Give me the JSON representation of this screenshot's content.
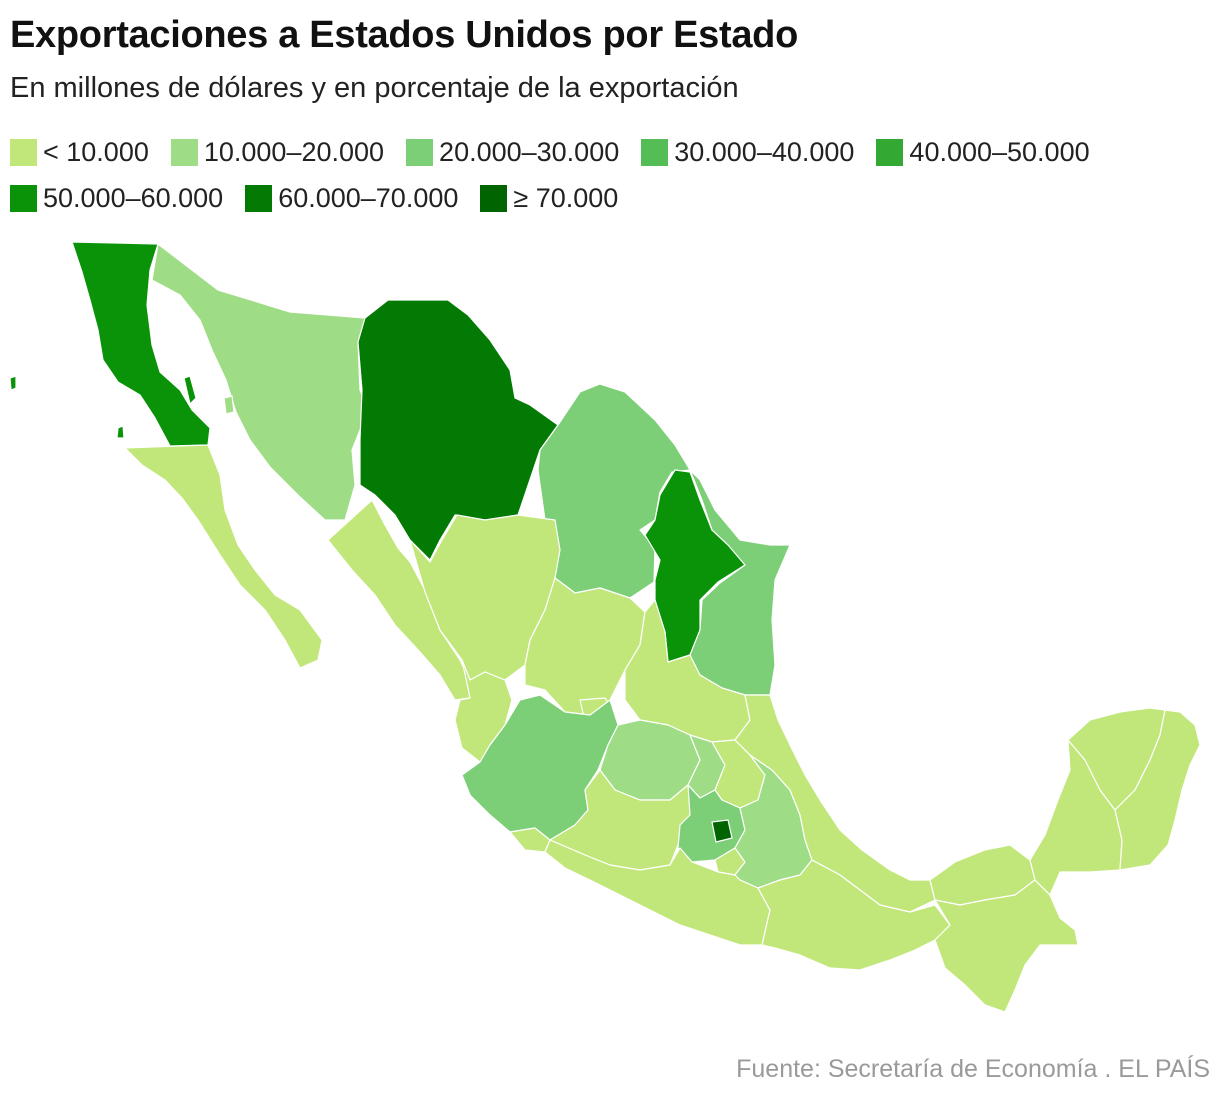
{
  "header": {
    "title": "Exportaciones a Estados Unidos por Estado",
    "subtitle": "En millones de dólares y en porcentaje de la exportación"
  },
  "legend": [
    {
      "label": "< 10.000",
      "color": "#c1e77b"
    },
    {
      "label": "10.000–20.000",
      "color": "#9fdc86"
    },
    {
      "label": "20.000–30.000",
      "color": "#7ccf77"
    },
    {
      "label": "30.000–40.000",
      "color": "#55bd55"
    },
    {
      "label": "40.000–50.000",
      "color": "#33a832"
    },
    {
      "label": "50.000–60.000",
      "color": "#0a9309"
    },
    {
      "label": "60.000–70.000",
      "color": "#037a04"
    },
    {
      "label": "≥ 70.000",
      "color": "#006400"
    }
  ],
  "footer": {
    "source": "Fuente: Secretaría de Economía . EL PAÍS"
  }
}
